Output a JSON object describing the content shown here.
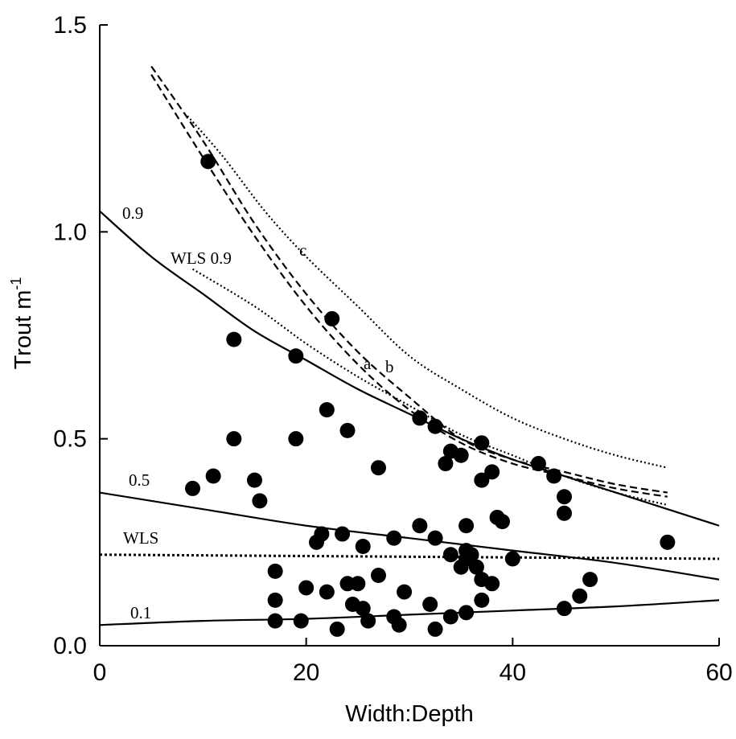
{
  "chart_data": {
    "type": "scatter",
    "title": "",
    "xlabel": "Width:Depth",
    "ylabel_main": "Trout m",
    "ylabel_sup": "-1",
    "xlim": [
      0,
      60
    ],
    "ylim": [
      0,
      1.5
    ],
    "xticks": [
      0,
      20,
      40,
      60
    ],
    "xtick_labels": [
      "0",
      "20",
      "40",
      "60"
    ],
    "yticks": [
      0,
      0.5,
      1.0,
      1.5
    ],
    "ytick_labels": [
      "0.0",
      "0.5",
      "1.0",
      "1.5"
    ],
    "grid": false,
    "points": [
      [
        10.5,
        1.17
      ],
      [
        22.5,
        0.79
      ],
      [
        13,
        0.74
      ],
      [
        19,
        0.7
      ],
      [
        22,
        0.57
      ],
      [
        24,
        0.52
      ],
      [
        13,
        0.5
      ],
      [
        19,
        0.5
      ],
      [
        31,
        0.55
      ],
      [
        32.5,
        0.53
      ],
      [
        37,
        0.49
      ],
      [
        34,
        0.47
      ],
      [
        35,
        0.46
      ],
      [
        33.5,
        0.44
      ],
      [
        27,
        0.43
      ],
      [
        38,
        0.42
      ],
      [
        37,
        0.4
      ],
      [
        42.5,
        0.44
      ],
      [
        44,
        0.41
      ],
      [
        45,
        0.36
      ],
      [
        45,
        0.32
      ],
      [
        11,
        0.41
      ],
      [
        9,
        0.38
      ],
      [
        15,
        0.4
      ],
      [
        15.5,
        0.35
      ],
      [
        55,
        0.25
      ],
      [
        38.5,
        0.31
      ],
      [
        39,
        0.3
      ],
      [
        31,
        0.29
      ],
      [
        35.5,
        0.29
      ],
      [
        32.5,
        0.26
      ],
      [
        28.5,
        0.26
      ],
      [
        21.5,
        0.27
      ],
      [
        23.5,
        0.27
      ],
      [
        21,
        0.25
      ],
      [
        25.5,
        0.24
      ],
      [
        34,
        0.22
      ],
      [
        35.5,
        0.23
      ],
      [
        36,
        0.22
      ],
      [
        35.5,
        0.21
      ],
      [
        35,
        0.19
      ],
      [
        36.5,
        0.19
      ],
      [
        40,
        0.21
      ],
      [
        38,
        0.15
      ],
      [
        37,
        0.16
      ],
      [
        47.5,
        0.16
      ],
      [
        17,
        0.18
      ],
      [
        27,
        0.17
      ],
      [
        24,
        0.15
      ],
      [
        25,
        0.15
      ],
      [
        20,
        0.14
      ],
      [
        22,
        0.13
      ],
      [
        29.5,
        0.13
      ],
      [
        17,
        0.11
      ],
      [
        24.5,
        0.1
      ],
      [
        25.5,
        0.09
      ],
      [
        32,
        0.1
      ],
      [
        37,
        0.11
      ],
      [
        46.5,
        0.12
      ],
      [
        17,
        0.06
      ],
      [
        19.5,
        0.06
      ],
      [
        23,
        0.04
      ],
      [
        26,
        0.06
      ],
      [
        28.5,
        0.07
      ],
      [
        29,
        0.05
      ],
      [
        32.5,
        0.04
      ],
      [
        34,
        0.07
      ],
      [
        35.5,
        0.08
      ],
      [
        45,
        0.09
      ]
    ],
    "curves": [
      {
        "label": "0.9",
        "style": "solid",
        "x": [
          0,
          5,
          10,
          15,
          20,
          25,
          30,
          35,
          40,
          45,
          50,
          55,
          60
        ],
        "y": [
          1.05,
          0.94,
          0.85,
          0.76,
          0.69,
          0.62,
          0.56,
          0.5,
          0.45,
          0.41,
          0.37,
          0.33,
          0.29
        ]
      },
      {
        "label": "0.5",
        "style": "solid",
        "x": [
          0,
          10,
          20,
          30,
          40,
          50,
          60
        ],
        "y": [
          0.37,
          0.33,
          0.29,
          0.26,
          0.23,
          0.2,
          0.16
        ]
      },
      {
        "label": "0.1",
        "style": "solid",
        "x": [
          0,
          10,
          20,
          30,
          40,
          50,
          60
        ],
        "y": [
          0.05,
          0.06,
          0.065,
          0.075,
          0.085,
          0.095,
          0.11
        ]
      },
      {
        "label": "WLS",
        "style": "dotted-bold",
        "x": [
          0,
          60
        ],
        "y": [
          0.22,
          0.21
        ]
      },
      {
        "label": "WLS 0.9",
        "style": "dotted",
        "x": [
          9,
          15,
          20,
          25,
          30,
          35,
          40,
          45,
          50,
          55
        ],
        "y": [
          0.91,
          0.82,
          0.73,
          0.65,
          0.58,
          0.51,
          0.46,
          0.41,
          0.37,
          0.34
        ]
      },
      {
        "label": "c",
        "style": "dotted",
        "x": [
          8.5,
          12,
          16,
          20,
          25,
          30,
          35,
          40,
          45,
          50,
          55
        ],
        "y": [
          1.28,
          1.18,
          1.05,
          0.94,
          0.82,
          0.7,
          0.62,
          0.55,
          0.5,
          0.46,
          0.43
        ]
      },
      {
        "label": "a",
        "style": "dashed",
        "x": [
          5,
          10,
          15,
          20,
          25,
          30,
          35,
          40,
          45,
          50,
          55
        ],
        "y": [
          1.38,
          1.18,
          0.99,
          0.82,
          0.68,
          0.57,
          0.49,
          0.44,
          0.41,
          0.38,
          0.36
        ]
      },
      {
        "label": "b",
        "style": "dashed",
        "x": [
          5,
          10,
          15,
          20,
          25,
          30,
          35,
          40,
          45,
          50,
          55
        ],
        "y": [
          1.4,
          1.22,
          1.02,
          0.85,
          0.71,
          0.6,
          0.5,
          0.45,
          0.42,
          0.39,
          0.37
        ]
      }
    ]
  }
}
